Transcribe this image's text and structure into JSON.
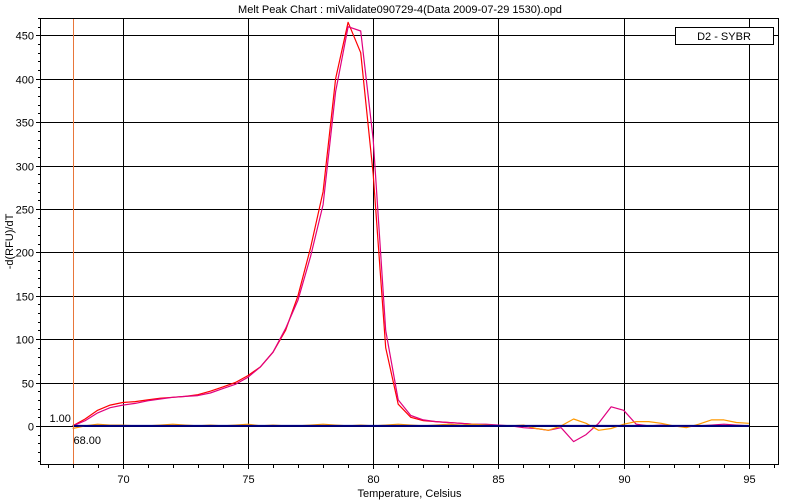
{
  "chart_data": {
    "type": "line",
    "title": "Melt Peak Chart : miValidate090729-4(Data 2009-07-29 1530).opd",
    "xlabel": "Temperature, Celsius",
    "ylabel": "-d(RFU)/dT",
    "xlim": [
      66.7,
      96.2
    ],
    "ylim": [
      -45,
      470
    ],
    "xticks": [
      70,
      75,
      80,
      85,
      90,
      95
    ],
    "yticks": [
      0,
      50,
      100,
      150,
      200,
      250,
      300,
      350,
      400,
      450
    ],
    "grid": true,
    "legend": {
      "position": "top-right",
      "text": "D2 - SYBR"
    },
    "cursor": {
      "x": 68.0,
      "x_label": "68.00",
      "y_label": "1.00",
      "color": "#E8763A"
    },
    "series": [
      {
        "color": "#FF0000",
        "x": [
          68,
          68.5,
          69,
          69.5,
          70,
          70.5,
          71,
          71.5,
          72,
          72.5,
          73,
          73.5,
          74,
          74.5,
          75,
          75.5,
          76,
          76.5,
          77,
          77.5,
          78,
          78.5,
          79,
          79.5,
          80,
          80.5,
          81,
          81.5,
          82,
          82.5,
          83,
          83.5,
          84,
          84.5,
          85,
          85.5,
          86,
          86.5,
          87,
          87.5,
          88,
          88.5,
          89,
          89.5,
          90,
          90.5,
          91,
          91.5,
          92,
          92.5,
          93,
          93.5,
          94,
          94.5,
          95
        ],
        "values": [
          0,
          8,
          18,
          24,
          27,
          28,
          30,
          32,
          33,
          34,
          36,
          40,
          45,
          50,
          58,
          68,
          85,
          110,
          150,
          205,
          270,
          400,
          465,
          430,
          290,
          90,
          25,
          10,
          6,
          5,
          4,
          3,
          2,
          1,
          0,
          0,
          0,
          0,
          0,
          0,
          0,
          0,
          0,
          0,
          0,
          0,
          0,
          0,
          0,
          0,
          0,
          0,
          0,
          0,
          0
        ]
      },
      {
        "color": "#E0007F",
        "x": [
          68,
          68.5,
          69,
          69.5,
          70,
          70.5,
          71,
          71.5,
          72,
          72.5,
          73,
          73.5,
          74,
          74.5,
          75,
          75.5,
          76,
          76.5,
          77,
          77.5,
          78,
          78.5,
          79,
          79.5,
          80,
          80.5,
          81,
          81.5,
          82,
          82.5,
          83,
          83.5,
          84,
          84.5,
          85,
          85.5,
          86,
          86.5,
          87,
          87.5,
          88,
          88.5,
          89,
          89.5,
          90,
          90.5,
          91,
          91.5,
          92,
          92.5,
          93,
          93.5,
          94,
          94.5,
          95
        ],
        "values": [
          0,
          6,
          15,
          21,
          24,
          26,
          29,
          31,
          33,
          34,
          35,
          38,
          43,
          48,
          56,
          68,
          85,
          112,
          145,
          195,
          255,
          385,
          460,
          455,
          330,
          110,
          30,
          12,
          7,
          5,
          4,
          3,
          2,
          2,
          1,
          0,
          -2,
          -3,
          -5,
          -2,
          -18,
          -10,
          3,
          22,
          18,
          2,
          0,
          1,
          0,
          -1,
          0,
          1,
          2,
          1,
          0
        ]
      },
      {
        "color": "#FF9900",
        "x": [
          68,
          68.5,
          69,
          69.5,
          70,
          70.5,
          71,
          71.5,
          72,
          72.5,
          73,
          73.5,
          74,
          74.5,
          75,
          75.5,
          76,
          76.5,
          77,
          77.5,
          78,
          78.5,
          79,
          79.5,
          80,
          80.5,
          81,
          81.5,
          82,
          82.5,
          83,
          83.5,
          84,
          84.5,
          85,
          85.5,
          86,
          86.5,
          87,
          87.5,
          88,
          88.5,
          89,
          89.5,
          90,
          90.5,
          91,
          91.5,
          92,
          92.5,
          93,
          93.5,
          94,
          94.5,
          95
        ],
        "values": [
          -3,
          0,
          2,
          1,
          1,
          0,
          0,
          1,
          2,
          1,
          0,
          1,
          0,
          1,
          2,
          0,
          1,
          0,
          0,
          1,
          2,
          1,
          0,
          1,
          0,
          1,
          2,
          1,
          0,
          1,
          2,
          1,
          2,
          1,
          0,
          0,
          1,
          -3,
          -5,
          0,
          8,
          3,
          -5,
          -3,
          2,
          5,
          5,
          3,
          0,
          -2,
          2,
          7,
          7,
          4,
          3
        ]
      },
      {
        "color": "#000080",
        "x": [
          68,
          70,
          72,
          74,
          76,
          78,
          80,
          82,
          84,
          86,
          88,
          90,
          92,
          94,
          95
        ],
        "values": [
          0,
          0,
          0,
          0,
          0,
          0,
          0,
          0,
          0,
          0,
          0,
          0,
          0,
          0,
          0
        ]
      }
    ]
  }
}
